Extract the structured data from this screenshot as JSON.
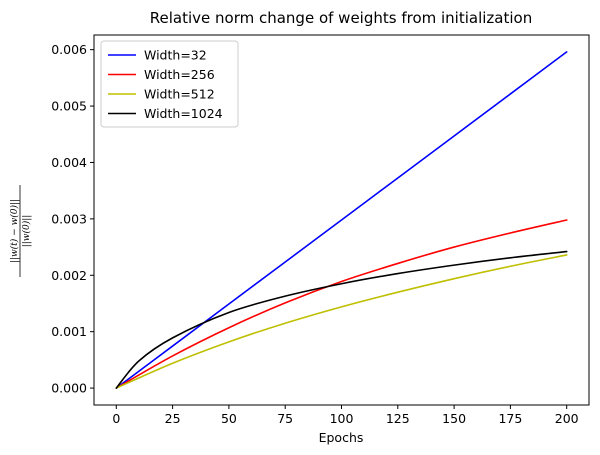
{
  "chart_data": {
    "type": "line",
    "title": "Relative norm change of weights from initialization",
    "xlabel": "Epochs",
    "ylabel": {
      "numerator": "||w(t) − w(0)||",
      "denominator": "||w(0)||"
    },
    "xlim": [
      -9.9,
      209.9
    ],
    "ylim": [
      -0.0003,
      0.00626
    ],
    "xticks": [
      0,
      25,
      50,
      75,
      100,
      125,
      150,
      175,
      200
    ],
    "xtick_labels": [
      "0",
      "25",
      "50",
      "75",
      "100",
      "125",
      "150",
      "175",
      "200"
    ],
    "yticks": [
      0.0,
      0.001,
      0.002,
      0.003,
      0.004,
      0.005,
      0.006
    ],
    "ytick_labels": [
      "0.000",
      "0.001",
      "0.002",
      "0.003",
      "0.004",
      "0.005",
      "0.006"
    ],
    "legend_position": "top-left",
    "series": [
      {
        "name": "Width=32",
        "color": "#0000ff",
        "x": [
          0,
          25,
          50,
          75,
          100,
          125,
          150,
          175,
          200
        ],
        "values": [
          0.0,
          0.000745,
          0.00149,
          0.002235,
          0.00298,
          0.003725,
          0.00447,
          0.005215,
          0.00596
        ]
      },
      {
        "name": "Width=256",
        "color": "#ff0000",
        "x": [
          0,
          25,
          50,
          75,
          100,
          125,
          150,
          175,
          200
        ],
        "values": [
          0.0,
          0.00057,
          0.00107,
          0.00151,
          0.00189,
          0.00221,
          0.0025,
          0.00275,
          0.00298
        ]
      },
      {
        "name": "Width=512",
        "color": "#bfbf00",
        "x": [
          0,
          25,
          50,
          75,
          100,
          125,
          150,
          175,
          200
        ],
        "values": [
          0.0,
          0.00044,
          0.00082,
          0.00115,
          0.00144,
          0.0017,
          0.00194,
          0.00216,
          0.00236
        ]
      },
      {
        "name": "Width=1024",
        "color": "#000000",
        "x": [
          0,
          10,
          25,
          50,
          75,
          100,
          125,
          150,
          175,
          200
        ],
        "values": [
          0.0,
          0.00048,
          0.00089,
          0.00134,
          0.00163,
          0.00185,
          0.00203,
          0.00218,
          0.00231,
          0.00242
        ]
      }
    ]
  }
}
